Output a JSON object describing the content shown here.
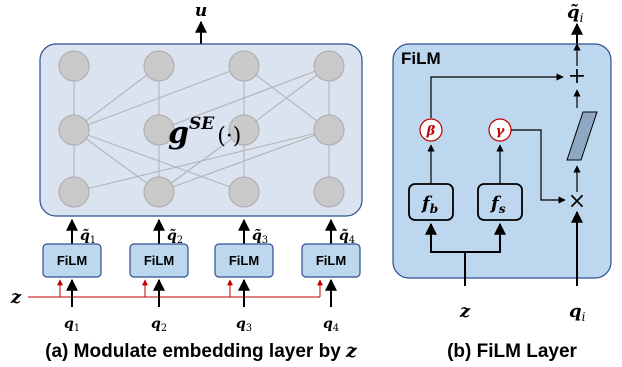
{
  "left_diagram": {
    "output_label": "u",
    "network_label": "g",
    "network_superscript": "SE",
    "network_arg": "(·)",
    "film_blocks": [
      {
        "label": "FiLM",
        "output": "q̃",
        "output_sub": "1",
        "input": "q",
        "input_sub": "1"
      },
      {
        "label": "FiLM",
        "output": "q̃",
        "output_sub": "2",
        "input": "q",
        "input_sub": "2"
      },
      {
        "label": "FiLM",
        "output": "q̃",
        "output_sub": "3",
        "input": "q",
        "input_sub": "3"
      },
      {
        "label": "FiLM",
        "output": "q̃",
        "output_sub": "4",
        "input": "q",
        "input_sub": "4"
      }
    ],
    "z_label": "z",
    "caption_prefix": "(a) Modulate embedding layer by ",
    "caption_var": "z"
  },
  "right_diagram": {
    "panel_title": "FiLM",
    "output_label": "q̃",
    "output_sub": "i",
    "plus_symbol": "+",
    "times_symbol": "×",
    "beta_symbol": "β",
    "gamma_symbol": "γ",
    "fb_label": "f",
    "fb_sub": "b",
    "fs_label": "f",
    "fs_sub": "s",
    "z_label": "z",
    "q_label": "q",
    "q_sub": "i",
    "caption": "(b) FiLM Layer"
  },
  "colors": {
    "panel_fill": "#dbe3f1",
    "panel_stroke": "#2f4f8f",
    "film_fill": "#bdd7ee",
    "node_fill": "#c9c9c9",
    "node_stroke": "#aaaaaa",
    "edge": "#b4b4b4",
    "red": "#c00000"
  }
}
